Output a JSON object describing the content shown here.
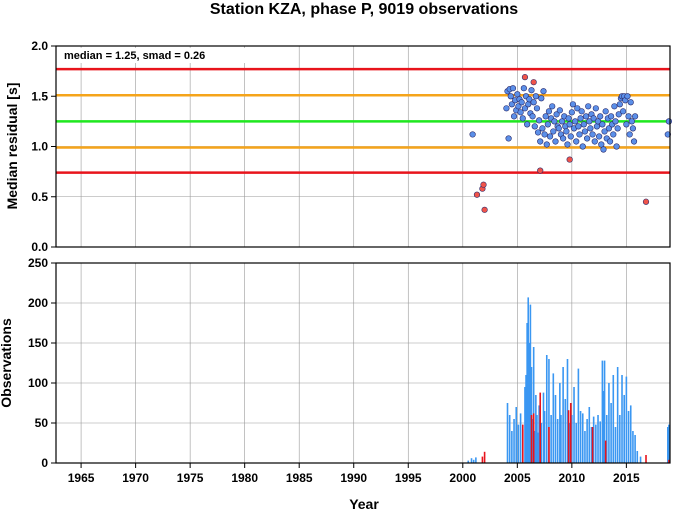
{
  "chart_data": [
    {
      "type": "scatter",
      "title": "Station KZA, phase P, 9019 observations",
      "annotation": "median = 1.25, smad = 0.26",
      "ylabel": "Median residual [s]",
      "xlim": [
        1962.7,
        2019.0
      ],
      "ylim": [
        0.0,
        2.0
      ],
      "yticks": [
        "0.0",
        "0.5",
        "1.0",
        "1.5",
        "2.0"
      ],
      "grid": true,
      "reference_lines": [
        {
          "value": 1.77,
          "color": "#e8141c",
          "role": "upper outlier bound"
        },
        {
          "value": 1.51,
          "color": "#f5a41a",
          "role": "upper smad bound"
        },
        {
          "value": 1.25,
          "color": "#1fe81f",
          "role": "median"
        },
        {
          "value": 0.99,
          "color": "#f5a41a",
          "role": "lower smad bound"
        },
        {
          "value": 0.74,
          "color": "#e8141c",
          "role": "lower outlier bound"
        }
      ],
      "series": [
        {
          "color": "#5b8fe8",
          "points": [
            [
              2000.9,
              1.12
            ],
            [
              2004.0,
              1.38
            ],
            [
              2004.1,
              1.55
            ],
            [
              2004.2,
              1.08
            ],
            [
              2004.3,
              1.57
            ],
            [
              2004.4,
              1.5
            ],
            [
              2004.5,
              1.42
            ],
            [
              2004.6,
              1.58
            ],
            [
              2004.7,
              1.3
            ],
            [
              2004.8,
              1.46
            ],
            [
              2004.9,
              1.36
            ],
            [
              2005.0,
              1.52
            ],
            [
              2005.1,
              1.4
            ],
            [
              2005.2,
              1.47
            ],
            [
              2005.3,
              1.34
            ],
            [
              2005.4,
              1.44
            ],
            [
              2005.5,
              1.28
            ],
            [
              2005.6,
              1.58
            ],
            [
              2005.7,
              1.38
            ],
            [
              2005.8,
              1.5
            ],
            [
              2005.9,
              1.22
            ],
            [
              2006.0,
              1.42
            ],
            [
              2006.1,
              1.47
            ],
            [
              2006.2,
              1.33
            ],
            [
              2006.3,
              1.56
            ],
            [
              2006.4,
              1.3
            ],
            [
              2006.5,
              1.44
            ],
            [
              2006.6,
              1.2
            ],
            [
              2006.7,
              1.5
            ],
            [
              2006.8,
              1.38
            ],
            [
              2006.9,
              1.14
            ],
            [
              2007.0,
              1.26
            ],
            [
              2007.1,
              1.05
            ],
            [
              2007.2,
              1.48
            ],
            [
              2007.3,
              1.18
            ],
            [
              2007.4,
              1.55
            ],
            [
              2007.5,
              1.12
            ],
            [
              2007.6,
              1.3
            ],
            [
              2007.7,
              1.02
            ],
            [
              2007.8,
              1.22
            ],
            [
              2007.9,
              1.35
            ],
            [
              2008.0,
              1.1
            ],
            [
              2008.1,
              1.28
            ],
            [
              2008.2,
              1.4
            ],
            [
              2008.3,
              1.15
            ],
            [
              2008.4,
              1.25
            ],
            [
              2008.5,
              1.05
            ],
            [
              2008.6,
              1.32
            ],
            [
              2008.7,
              1.2
            ],
            [
              2008.8,
              1.18
            ],
            [
              2008.9,
              1.36
            ],
            [
              2009.0,
              1.12
            ],
            [
              2009.1,
              1.25
            ],
            [
              2009.2,
              1.08
            ],
            [
              2009.3,
              1.3
            ],
            [
              2009.4,
              1.2
            ],
            [
              2009.5,
              1.15
            ],
            [
              2009.6,
              1.02
            ],
            [
              2009.7,
              1.28
            ],
            [
              2009.8,
              1.22
            ],
            [
              2009.9,
              1.1
            ],
            [
              2010.0,
              1.34
            ],
            [
              2010.1,
              1.42
            ],
            [
              2010.2,
              1.18
            ],
            [
              2010.3,
              1.25
            ],
            [
              2010.4,
              1.05
            ],
            [
              2010.5,
              1.38
            ],
            [
              2010.6,
              1.2
            ],
            [
              2010.7,
              1.12
            ],
            [
              2010.8,
              1.28
            ],
            [
              2010.9,
              1.35
            ],
            [
              2011.0,
              1.0
            ],
            [
              2011.1,
              1.22
            ],
            [
              2011.2,
              1.15
            ],
            [
              2011.3,
              1.3
            ],
            [
              2011.4,
              1.08
            ],
            [
              2011.5,
              1.4
            ],
            [
              2011.6,
              1.25
            ],
            [
              2011.7,
              1.18
            ],
            [
              2011.8,
              1.32
            ],
            [
              2011.9,
              1.12
            ],
            [
              2012.0,
              1.28
            ],
            [
              2012.1,
              1.05
            ],
            [
              2012.2,
              1.38
            ],
            [
              2012.3,
              1.2
            ],
            [
              2012.4,
              1.25
            ],
            [
              2012.5,
              1.1
            ],
            [
              2012.6,
              1.3
            ],
            [
              2012.7,
              1.02
            ],
            [
              2012.8,
              1.22
            ],
            [
              2012.9,
              0.97
            ],
            [
              2013.0,
              1.15
            ],
            [
              2013.1,
              1.35
            ],
            [
              2013.2,
              1.08
            ],
            [
              2013.3,
              1.28
            ],
            [
              2013.4,
              1.18
            ],
            [
              2013.5,
              1.05
            ],
            [
              2013.6,
              1.3
            ],
            [
              2013.7,
              1.22
            ],
            [
              2013.8,
              1.12
            ],
            [
              2013.9,
              1.4
            ],
            [
              2014.0,
              1.25
            ],
            [
              2014.1,
              1.0
            ],
            [
              2014.2,
              1.18
            ],
            [
              2014.3,
              1.32
            ],
            [
              2014.4,
              1.42
            ],
            [
              2014.5,
              1.48
            ],
            [
              2014.6,
              1.5
            ],
            [
              2014.7,
              1.35
            ],
            [
              2014.8,
              1.5
            ],
            [
              2014.9,
              1.46
            ],
            [
              2015.0,
              1.22
            ],
            [
              2015.1,
              1.5
            ],
            [
              2015.2,
              1.3
            ],
            [
              2015.3,
              1.12
            ],
            [
              2015.4,
              1.44
            ],
            [
              2015.5,
              1.25
            ],
            [
              2015.6,
              1.18
            ],
            [
              2015.7,
              1.05
            ],
            [
              2015.8,
              1.3
            ],
            [
              2018.8,
              1.12
            ],
            [
              2018.9,
              1.25
            ]
          ]
        },
        {
          "color": "#f0544a",
          "points": [
            [
              2001.3,
              0.52
            ],
            [
              2001.8,
              0.58
            ],
            [
              2001.9,
              0.62
            ],
            [
              2002.0,
              0.37
            ],
            [
              2005.7,
              1.69
            ],
            [
              2006.5,
              1.64
            ],
            [
              2007.1,
              0.76
            ],
            [
              2009.8,
              0.87
            ],
            [
              2016.8,
              0.45
            ]
          ]
        }
      ]
    },
    {
      "type": "bar",
      "xlabel": "Year",
      "ylabel": "Observations",
      "xlim": [
        1962.7,
        2019.0
      ],
      "ylim": [
        0,
        250
      ],
      "xticks": [
        "1965",
        "1970",
        "1975",
        "1980",
        "1985",
        "1990",
        "1995",
        "2000",
        "2005",
        "2010",
        "2015"
      ],
      "yticks": [
        "0",
        "50",
        "100",
        "150",
        "200",
        "250"
      ],
      "grid": true,
      "series": [
        {
          "color": "#3a97f2",
          "points": [
            [
              2000.5,
              3
            ],
            [
              2000.8,
              6
            ],
            [
              2001.0,
              4
            ],
            [
              2001.2,
              7
            ],
            [
              2004.1,
              75
            ],
            [
              2004.3,
              60
            ],
            [
              2004.5,
              40
            ],
            [
              2004.7,
              55
            ],
            [
              2004.9,
              70
            ],
            [
              2005.1,
              48
            ],
            [
              2005.3,
              62
            ],
            [
              2005.5,
              42
            ],
            [
              2005.7,
              95
            ],
            [
              2005.8,
              110
            ],
            [
              2005.9,
              175
            ],
            [
              2006.0,
              207
            ],
            [
              2006.1,
              150
            ],
            [
              2006.2,
              198
            ],
            [
              2006.3,
              120
            ],
            [
              2006.4,
              55
            ],
            [
              2006.5,
              145
            ],
            [
              2006.6,
              40
            ],
            [
              2006.7,
              85
            ],
            [
              2006.8,
              60
            ],
            [
              2006.9,
              38
            ],
            [
              2007.0,
              72
            ],
            [
              2007.2,
              50
            ],
            [
              2007.4,
              88
            ],
            [
              2007.5,
              65
            ],
            [
              2007.7,
              135
            ],
            [
              2007.9,
              130
            ],
            [
              2008.1,
              60
            ],
            [
              2008.3,
              112
            ],
            [
              2008.5,
              85
            ],
            [
              2008.7,
              55
            ],
            [
              2008.9,
              100
            ],
            [
              2009.0,
              60
            ],
            [
              2009.2,
              120
            ],
            [
              2009.4,
              80
            ],
            [
              2009.6,
              130
            ],
            [
              2009.8,
              50
            ],
            [
              2010.0,
              60
            ],
            [
              2010.2,
              95
            ],
            [
              2010.4,
              50
            ],
            [
              2010.6,
              118
            ],
            [
              2010.8,
              65
            ],
            [
              2011.0,
              62
            ],
            [
              2011.2,
              40
            ],
            [
              2011.4,
              55
            ],
            [
              2011.6,
              70
            ],
            [
              2011.8,
              45
            ],
            [
              2012.0,
              58
            ],
            [
              2012.2,
              48
            ],
            [
              2012.4,
              60
            ],
            [
              2012.6,
              52
            ],
            [
              2012.8,
              128
            ],
            [
              2012.9,
              90
            ],
            [
              2013.0,
              128
            ],
            [
              2013.2,
              60
            ],
            [
              2013.4,
              100
            ],
            [
              2013.6,
              75
            ],
            [
              2013.8,
              110
            ],
            [
              2014.0,
              45
            ],
            [
              2014.2,
              120
            ],
            [
              2014.4,
              60
            ],
            [
              2014.6,
              110
            ],
            [
              2014.8,
              85
            ],
            [
              2015.0,
              108
            ],
            [
              2015.2,
              65
            ],
            [
              2015.4,
              72
            ],
            [
              2015.6,
              40
            ],
            [
              2015.8,
              35
            ],
            [
              2016.0,
              15
            ],
            [
              2016.3,
              8
            ],
            [
              2018.8,
              45
            ],
            [
              2018.9,
              48
            ]
          ]
        },
        {
          "color": "#e8141c",
          "points": [
            [
              2001.8,
              8
            ],
            [
              2002.0,
              14
            ],
            [
              2005.5,
              48
            ],
            [
              2006.3,
              60
            ],
            [
              2006.5,
              62
            ],
            [
              2007.1,
              88
            ],
            [
              2007.9,
              45
            ],
            [
              2009.7,
              66
            ],
            [
              2009.9,
              75
            ],
            [
              2011.9,
              45
            ],
            [
              2013.1,
              28
            ],
            [
              2016.8,
              10
            ],
            [
              2018.9,
              4
            ]
          ]
        }
      ]
    }
  ]
}
